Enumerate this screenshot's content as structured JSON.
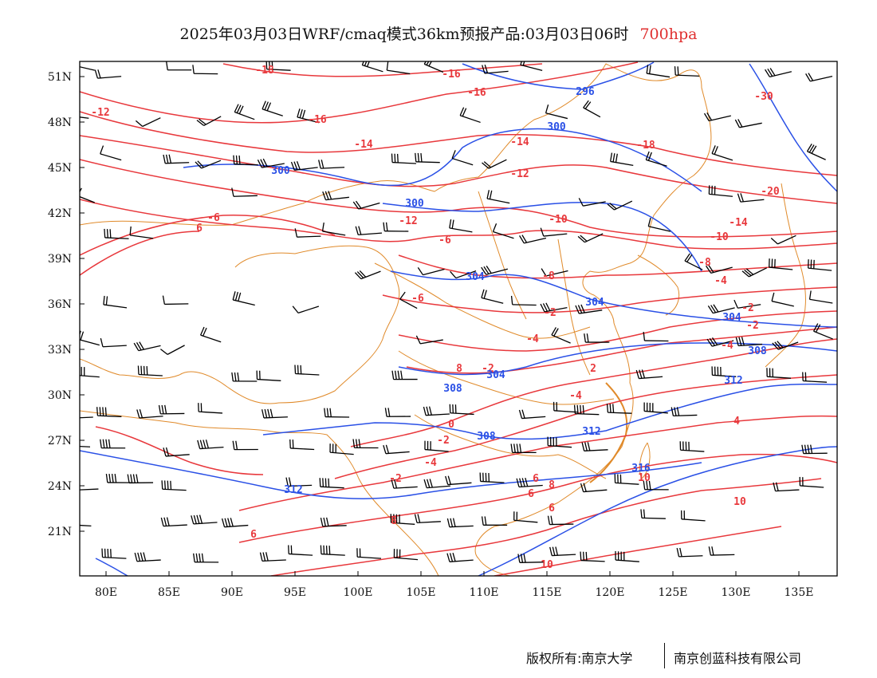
{
  "title": {
    "main": "2025年03月03日WRF/cmaq模式36km预报产品:03月03日06时",
    "level": "700hpa"
  },
  "map": {
    "lat_labels": [
      "51N",
      "48N",
      "45N",
      "42N",
      "39N",
      "36N",
      "33N",
      "30N",
      "27N",
      "24N",
      "21N"
    ],
    "lon_labels": [
      "80E",
      "85E",
      "90E",
      "95E",
      "100E",
      "105E",
      "110E",
      "115E",
      "120E",
      "125E",
      "130E",
      "135E"
    ],
    "colors": {
      "temperature": "#e8383c",
      "geopotential": "#2a50e6",
      "boundary": "#e08a2a",
      "barb": "#000000"
    },
    "temperature_labels": [
      "-18",
      "-16",
      "-16",
      "-12",
      "-16",
      "-14",
      "-14",
      "-18",
      "-30",
      "-12",
      "-20",
      "-14",
      "-12",
      "-10",
      "-10",
      "-6",
      "-8",
      "-8",
      "-6",
      "-6",
      "-4",
      "-2",
      "-2",
      "-4",
      "-2",
      "-4",
      "-2",
      "-4",
      "0",
      "2",
      "-2",
      "-4",
      "-2",
      "4",
      "6",
      "6",
      "6",
      "8",
      "10",
      "10",
      "6",
      "10",
      "8",
      "8",
      "6"
    ],
    "geopotential_labels": [
      "296",
      "300",
      "300",
      "300",
      "304",
      "304",
      "304",
      "304",
      "308",
      "308",
      "308",
      "312",
      "312",
      "312",
      "316"
    ]
  },
  "credits": {
    "left": "版权所有:南京大学",
    "right": "南京创蓝科技有限公司"
  }
}
